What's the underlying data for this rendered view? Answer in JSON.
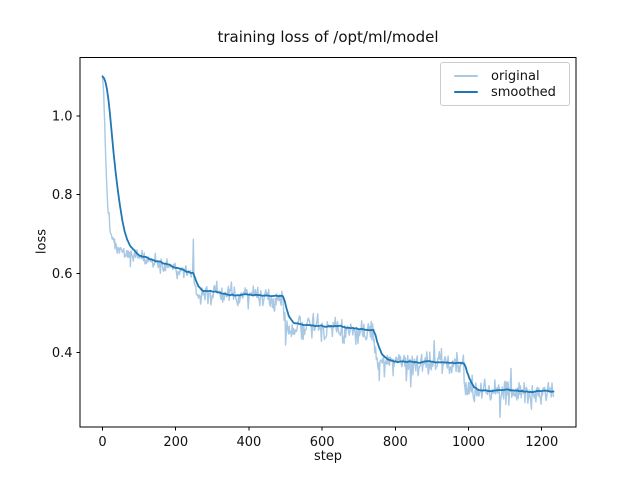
{
  "figure": {
    "background": "#ffffff",
    "text_color": "#111111",
    "spine_color": "#000000",
    "legend_border_color": "#cccccc"
  },
  "chart_data": {
    "type": "line",
    "title": "training loss of /opt/ml/model",
    "xlabel": "step",
    "ylabel": "loss",
    "grid": false,
    "legend_position": "upper right",
    "xlim": [
      -61.6,
      1293.6
    ],
    "ylim": [
      0.21,
      1.148
    ],
    "x_ticks": [
      {
        "value": 0,
        "label": "0"
      },
      {
        "value": 200,
        "label": "200"
      },
      {
        "value": 400,
        "label": "400"
      },
      {
        "value": 600,
        "label": "600"
      },
      {
        "value": 800,
        "label": "800"
      },
      {
        "value": 1000,
        "label": "1000"
      },
      {
        "value": 1200,
        "label": "1200"
      }
    ],
    "y_ticks": [
      {
        "value": 0.4,
        "label": "0.4"
      },
      {
        "value": 0.6,
        "label": "0.6"
      },
      {
        "value": 0.8,
        "label": "0.8"
      },
      {
        "value": 1.0,
        "label": "1.0"
      }
    ],
    "x_range": [
      0,
      1232
    ],
    "epoch_boundaries": [
      247,
      494,
      741,
      988
    ],
    "series": [
      {
        "name": "original",
        "color": "#a8c8e4",
        "linewidth": 1.4,
        "keypoints": [
          [
            0,
            1.103
          ],
          [
            3,
            1.06
          ],
          [
            6,
            0.975
          ],
          [
            9,
            0.885
          ],
          [
            12,
            0.815
          ],
          [
            15,
            0.765
          ],
          [
            18,
            0.732
          ],
          [
            22,
            0.708
          ],
          [
            27,
            0.69
          ],
          [
            33,
            0.676
          ],
          [
            40,
            0.666
          ],
          [
            50,
            0.658
          ],
          [
            62,
            0.652
          ],
          [
            75,
            0.647
          ],
          [
            90,
            0.643
          ],
          [
            110,
            0.64
          ],
          [
            130,
            0.636
          ],
          [
            150,
            0.63
          ],
          [
            170,
            0.622
          ],
          [
            190,
            0.614
          ],
          [
            210,
            0.608
          ],
          [
            230,
            0.604
          ],
          [
            244,
            0.601
          ],
          [
            246,
            0.604
          ],
          [
            247.5,
            0.655
          ],
          [
            248,
            0.671
          ],
          [
            249,
            0.63
          ],
          [
            250,
            0.585
          ],
          [
            252,
            0.566
          ],
          [
            255,
            0.556
          ],
          [
            260,
            0.552
          ],
          [
            270,
            0.551
          ],
          [
            285,
            0.551
          ],
          [
            300,
            0.55
          ],
          [
            320,
            0.549
          ],
          [
            340,
            0.547
          ],
          [
            360,
            0.546
          ],
          [
            380,
            0.545
          ],
          [
            400,
            0.545
          ],
          [
            420,
            0.544
          ],
          [
            440,
            0.542
          ],
          [
            460,
            0.541
          ],
          [
            480,
            0.54
          ],
          [
            493,
            0.54
          ],
          [
            494,
            0.515
          ],
          [
            496,
            0.488
          ],
          [
            499,
            0.472
          ],
          [
            503,
            0.464
          ],
          [
            509,
            0.46
          ],
          [
            517,
            0.459
          ],
          [
            527,
            0.462
          ],
          [
            540,
            0.465
          ],
          [
            560,
            0.466
          ],
          [
            580,
            0.4655
          ],
          [
            600,
            0.465
          ],
          [
            620,
            0.4645
          ],
          [
            640,
            0.463
          ],
          [
            660,
            0.462
          ],
          [
            680,
            0.461
          ],
          [
            700,
            0.46
          ],
          [
            720,
            0.4585
          ],
          [
            740,
            0.457
          ],
          [
            741,
            0.44
          ],
          [
            743,
            0.413
          ],
          [
            746,
            0.396
          ],
          [
            750,
            0.384
          ],
          [
            755,
            0.376
          ],
          [
            762,
            0.371
          ],
          [
            770,
            0.3685
          ],
          [
            780,
            0.3705
          ],
          [
            795,
            0.3735
          ],
          [
            810,
            0.375
          ],
          [
            830,
            0.3765
          ],
          [
            850,
            0.3755
          ],
          [
            870,
            0.3748
          ],
          [
            890,
            0.3742
          ],
          [
            910,
            0.3738
          ],
          [
            930,
            0.3732
          ],
          [
            950,
            0.3728
          ],
          [
            970,
            0.372
          ],
          [
            987,
            0.371
          ],
          [
            988,
            0.345
          ],
          [
            990,
            0.322
          ],
          [
            993,
            0.308
          ],
          [
            997,
            0.3
          ],
          [
            1002,
            0.2955
          ],
          [
            1008,
            0.294
          ],
          [
            1016,
            0.295
          ],
          [
            1026,
            0.298
          ],
          [
            1040,
            0.3005
          ],
          [
            1060,
            0.3015
          ],
          [
            1080,
            0.3015
          ],
          [
            1100,
            0.301
          ],
          [
            1120,
            0.3008
          ],
          [
            1140,
            0.3005
          ],
          [
            1160,
            0.3005
          ],
          [
            1180,
            0.3008
          ],
          [
            1200,
            0.301
          ],
          [
            1216,
            0.3008
          ],
          [
            1232,
            0.301
          ]
        ],
        "noise": {
          "seed": 1337,
          "step": 2,
          "sigmas": [
            [
              0,
              0.002
            ],
            [
              14,
              0.005
            ],
            [
              24,
              0.008
            ],
            [
              60,
              0.0095
            ],
            [
              247,
              0.013
            ],
            [
              494,
              0.014
            ],
            [
              741,
              0.015
            ],
            [
              988,
              0.0145
            ]
          ],
          "spike_prob": 0.07,
          "spike_mult": 2.2
        }
      },
      {
        "name": "smoothed",
        "color": "#1f77b4",
        "linewidth": 1.8,
        "keypoints": [
          [
            0,
            1.1
          ],
          [
            4,
            1.096
          ],
          [
            8,
            1.086
          ],
          [
            12,
            1.068
          ],
          [
            16,
            1.042
          ],
          [
            20,
            1.008
          ],
          [
            25,
            0.958
          ],
          [
            30,
            0.908
          ],
          [
            36,
            0.856
          ],
          [
            42,
            0.81
          ],
          [
            48,
            0.77
          ],
          [
            54,
            0.736
          ],
          [
            60,
            0.71
          ],
          [
            67,
            0.688
          ],
          [
            75,
            0.671
          ],
          [
            85,
            0.658
          ],
          [
            95,
            0.65
          ],
          [
            110,
            0.644
          ],
          [
            125,
            0.639
          ],
          [
            140,
            0.635
          ],
          [
            155,
            0.63
          ],
          [
            170,
            0.623
          ],
          [
            185,
            0.617
          ],
          [
            200,
            0.612
          ],
          [
            215,
            0.608
          ],
          [
            230,
            0.605
          ],
          [
            240,
            0.602
          ],
          [
            247,
            0.601
          ],
          [
            251,
            0.592
          ],
          [
            256,
            0.577
          ],
          [
            262,
            0.565
          ],
          [
            269,
            0.558
          ],
          [
            277,
            0.5545
          ],
          [
            287,
            0.5525
          ],
          [
            300,
            0.5515
          ],
          [
            315,
            0.5505
          ],
          [
            330,
            0.549
          ],
          [
            345,
            0.5495
          ],
          [
            360,
            0.547
          ],
          [
            375,
            0.5465
          ],
          [
            390,
            0.5465
          ],
          [
            405,
            0.5455
          ],
          [
            420,
            0.5445
          ],
          [
            435,
            0.5435
          ],
          [
            450,
            0.5425
          ],
          [
            465,
            0.542
          ],
          [
            480,
            0.5405
          ],
          [
            493,
            0.54
          ],
          [
            498,
            0.528
          ],
          [
            503,
            0.508
          ],
          [
            509,
            0.492
          ],
          [
            515,
            0.482
          ],
          [
            522,
            0.4755
          ],
          [
            530,
            0.4715
          ],
          [
            540,
            0.469
          ],
          [
            555,
            0.467
          ],
          [
            570,
            0.4662
          ],
          [
            585,
            0.4658
          ],
          [
            600,
            0.4655
          ],
          [
            615,
            0.465
          ],
          [
            630,
            0.4645
          ],
          [
            645,
            0.4638
          ],
          [
            660,
            0.4628
          ],
          [
            675,
            0.4618
          ],
          [
            690,
            0.4608
          ],
          [
            705,
            0.4598
          ],
          [
            720,
            0.4585
          ],
          [
            732,
            0.4575
          ],
          [
            740,
            0.457
          ],
          [
            745,
            0.447
          ],
          [
            750,
            0.428
          ],
          [
            756,
            0.411
          ],
          [
            762,
            0.399
          ],
          [
            769,
            0.39
          ],
          [
            777,
            0.385
          ],
          [
            786,
            0.3805
          ],
          [
            797,
            0.3785
          ],
          [
            810,
            0.3775
          ],
          [
            825,
            0.3765
          ],
          [
            840,
            0.377
          ],
          [
            855,
            0.376
          ],
          [
            870,
            0.3755
          ],
          [
            885,
            0.375
          ],
          [
            900,
            0.3745
          ],
          [
            915,
            0.374
          ],
          [
            930,
            0.3738
          ],
          [
            945,
            0.3734
          ],
          [
            960,
            0.3728
          ],
          [
            975,
            0.372
          ],
          [
            987,
            0.3712
          ],
          [
            992,
            0.363
          ],
          [
            997,
            0.347
          ],
          [
            1002,
            0.333
          ],
          [
            1008,
            0.321
          ],
          [
            1015,
            0.3125
          ],
          [
            1023,
            0.3075
          ],
          [
            1032,
            0.3048
          ],
          [
            1043,
            0.3035
          ],
          [
            1058,
            0.3028
          ],
          [
            1075,
            0.3022
          ],
          [
            1095,
            0.3018
          ],
          [
            1115,
            0.3015
          ],
          [
            1135,
            0.3015
          ],
          [
            1155,
            0.3012
          ],
          [
            1175,
            0.3012
          ],
          [
            1195,
            0.3015
          ],
          [
            1215,
            0.3015
          ],
          [
            1232,
            0.3018
          ]
        ],
        "wiggle": {
          "seed": 7,
          "amp": 0.022,
          "alpha": 0.12
        }
      }
    ]
  }
}
